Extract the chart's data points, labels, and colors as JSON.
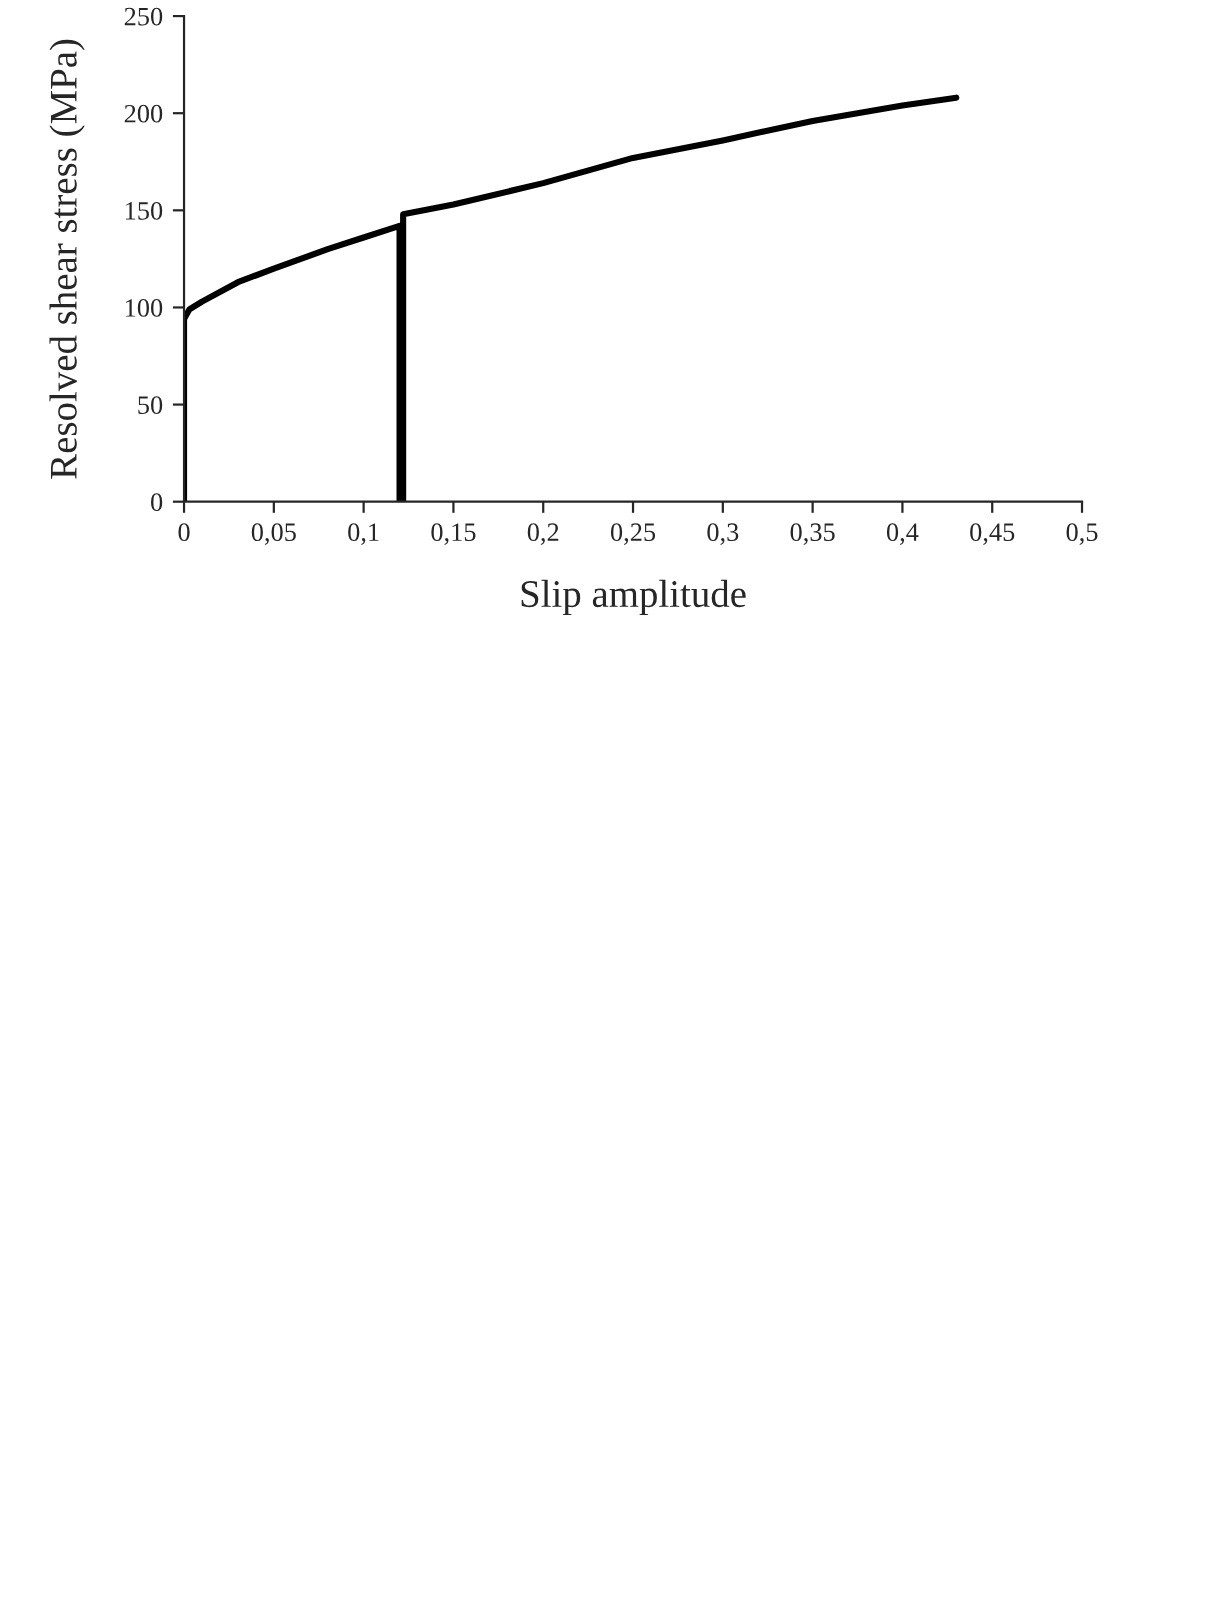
{
  "chart_data": {
    "type": "line",
    "xlabel": "Slip amplitude",
    "ylabel": "Resolved shear stress (MPa)",
    "series": [
      {
        "color": "#000000",
        "x": [
          0,
          0,
          0.003,
          0.01,
          0.03,
          0.05,
          0.08,
          0.1,
          0.12,
          0.12,
          0.122,
          0.122,
          0.15,
          0.2,
          0.25,
          0.3,
          0.35,
          0.4,
          0.43
        ],
        "values": [
          0,
          94,
          99,
          103,
          113,
          120,
          130,
          136,
          142,
          0,
          0,
          148,
          153,
          164,
          177,
          186,
          196,
          204,
          208
        ]
      }
    ],
    "xlim": [
      0,
      0.5
    ],
    "xticks": [
      0,
      {
        "value": 0.05,
        "label": "0,05"
      },
      {
        "value": 0.1,
        "label": "0,1"
      },
      {
        "value": 0.15,
        "label": "0,15"
      },
      {
        "value": 0.2,
        "label": "0,2"
      },
      {
        "value": 0.25,
        "label": "0,25"
      },
      {
        "value": 0.3,
        "label": "0,3"
      },
      {
        "value": 0.35,
        "label": "0,35"
      },
      {
        "value": 0.4,
        "label": "0,4"
      },
      {
        "value": 0.45,
        "label": "0,45"
      },
      {
        "value": 0.5,
        "label": "0,5"
      }
    ],
    "ylim": [
      0,
      250
    ],
    "yticks": [
      0,
      50,
      100,
      150,
      200,
      250
    ],
    "grid": false,
    "marker": "none",
    "line_style": "solid"
  }
}
